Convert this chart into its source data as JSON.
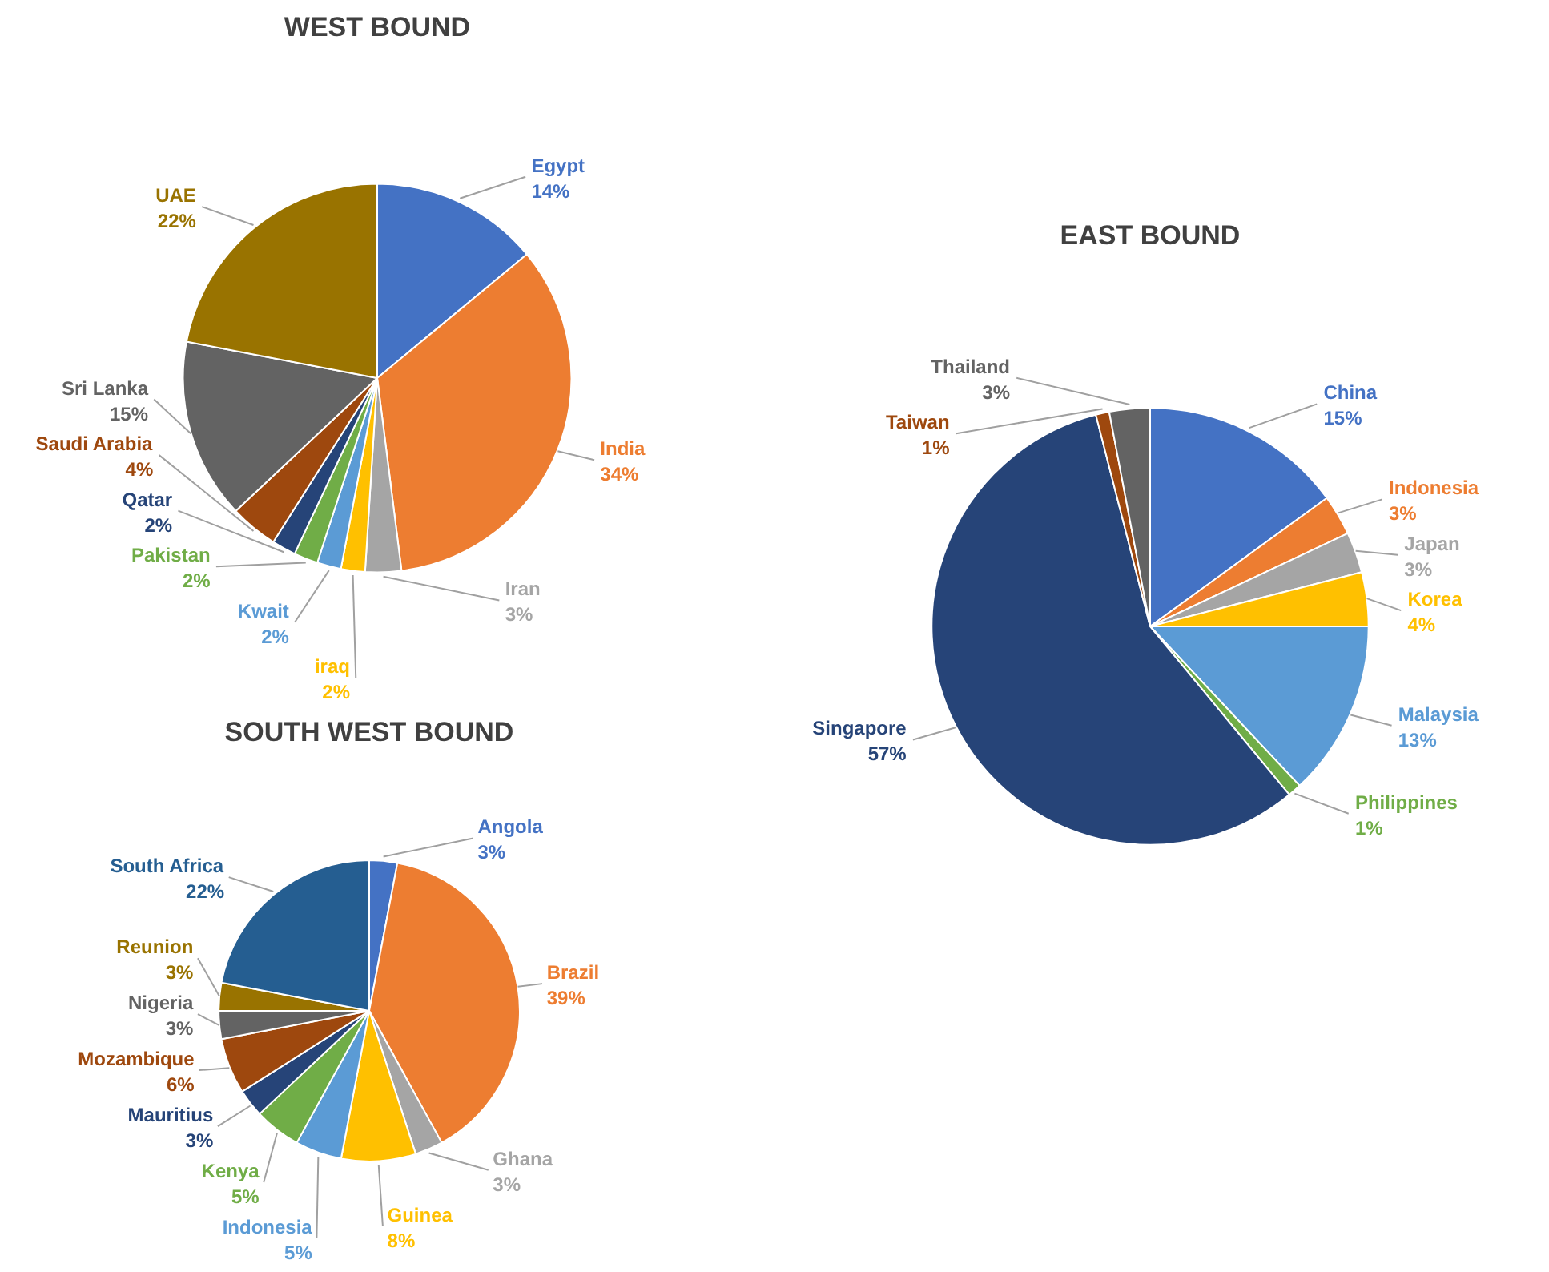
{
  "chart_data": [
    {
      "type": "pie",
      "title": "WEST BOUND",
      "categories": [
        "Egypt",
        "India",
        "Iran",
        "iraq",
        "Kwait",
        "Pakistan",
        "Qatar",
        "Saudi Arabia",
        "Sri Lanka",
        "UAE"
      ],
      "values": [
        14,
        34,
        3,
        2,
        2,
        2,
        2,
        4,
        15,
        22
      ],
      "value_labels": [
        "14%",
        "34%",
        "3%",
        "2%",
        "2%",
        "2%",
        "2%",
        "4%",
        "15%",
        "22%"
      ],
      "colors": [
        "#4472c4",
        "#ed7d31",
        "#a5a5a5",
        "#ffc000",
        "#5b9bd5",
        "#70ad47",
        "#264478",
        "#9e480e",
        "#636363",
        "#997300"
      ]
    },
    {
      "type": "pie",
      "title": "SOUTH WEST BOUND",
      "categories": [
        "Angola",
        "Brazil",
        "Ghana",
        "Guinea",
        "Indonesia",
        "Kenya",
        "Mauritius",
        "Mozambique",
        "Nigeria",
        "Reunion",
        "South Africa"
      ],
      "values": [
        3,
        39,
        3,
        8,
        5,
        5,
        3,
        6,
        3,
        3,
        22
      ],
      "value_labels": [
        "3%",
        "39%",
        "3%",
        "8%",
        "5%",
        "5%",
        "3%",
        "6%",
        "3%",
        "3%",
        "22%"
      ],
      "colors": [
        "#4472c4",
        "#ed7d31",
        "#a5a5a5",
        "#ffc000",
        "#5b9bd5",
        "#70ad47",
        "#264478",
        "#9e480e",
        "#636363",
        "#997300",
        "#255e91"
      ]
    },
    {
      "type": "pie",
      "title": "EAST BOUND",
      "categories": [
        "China",
        "Indonesia",
        "Japan",
        "Korea",
        "Malaysia",
        "Philippines",
        "Singapore",
        "Taiwan",
        "Thailand"
      ],
      "values": [
        15,
        3,
        3,
        4,
        13,
        1,
        57,
        1,
        3
      ],
      "value_labels": [
        "15%",
        "3%",
        "3%",
        "4%",
        "13%",
        "1%",
        "57%",
        "1%",
        "3%"
      ],
      "colors": [
        "#4472c4",
        "#ed7d31",
        "#a5a5a5",
        "#ffc000",
        "#5b9bd5",
        "#70ad47",
        "#264478",
        "#9e480e",
        "#636363"
      ]
    }
  ]
}
